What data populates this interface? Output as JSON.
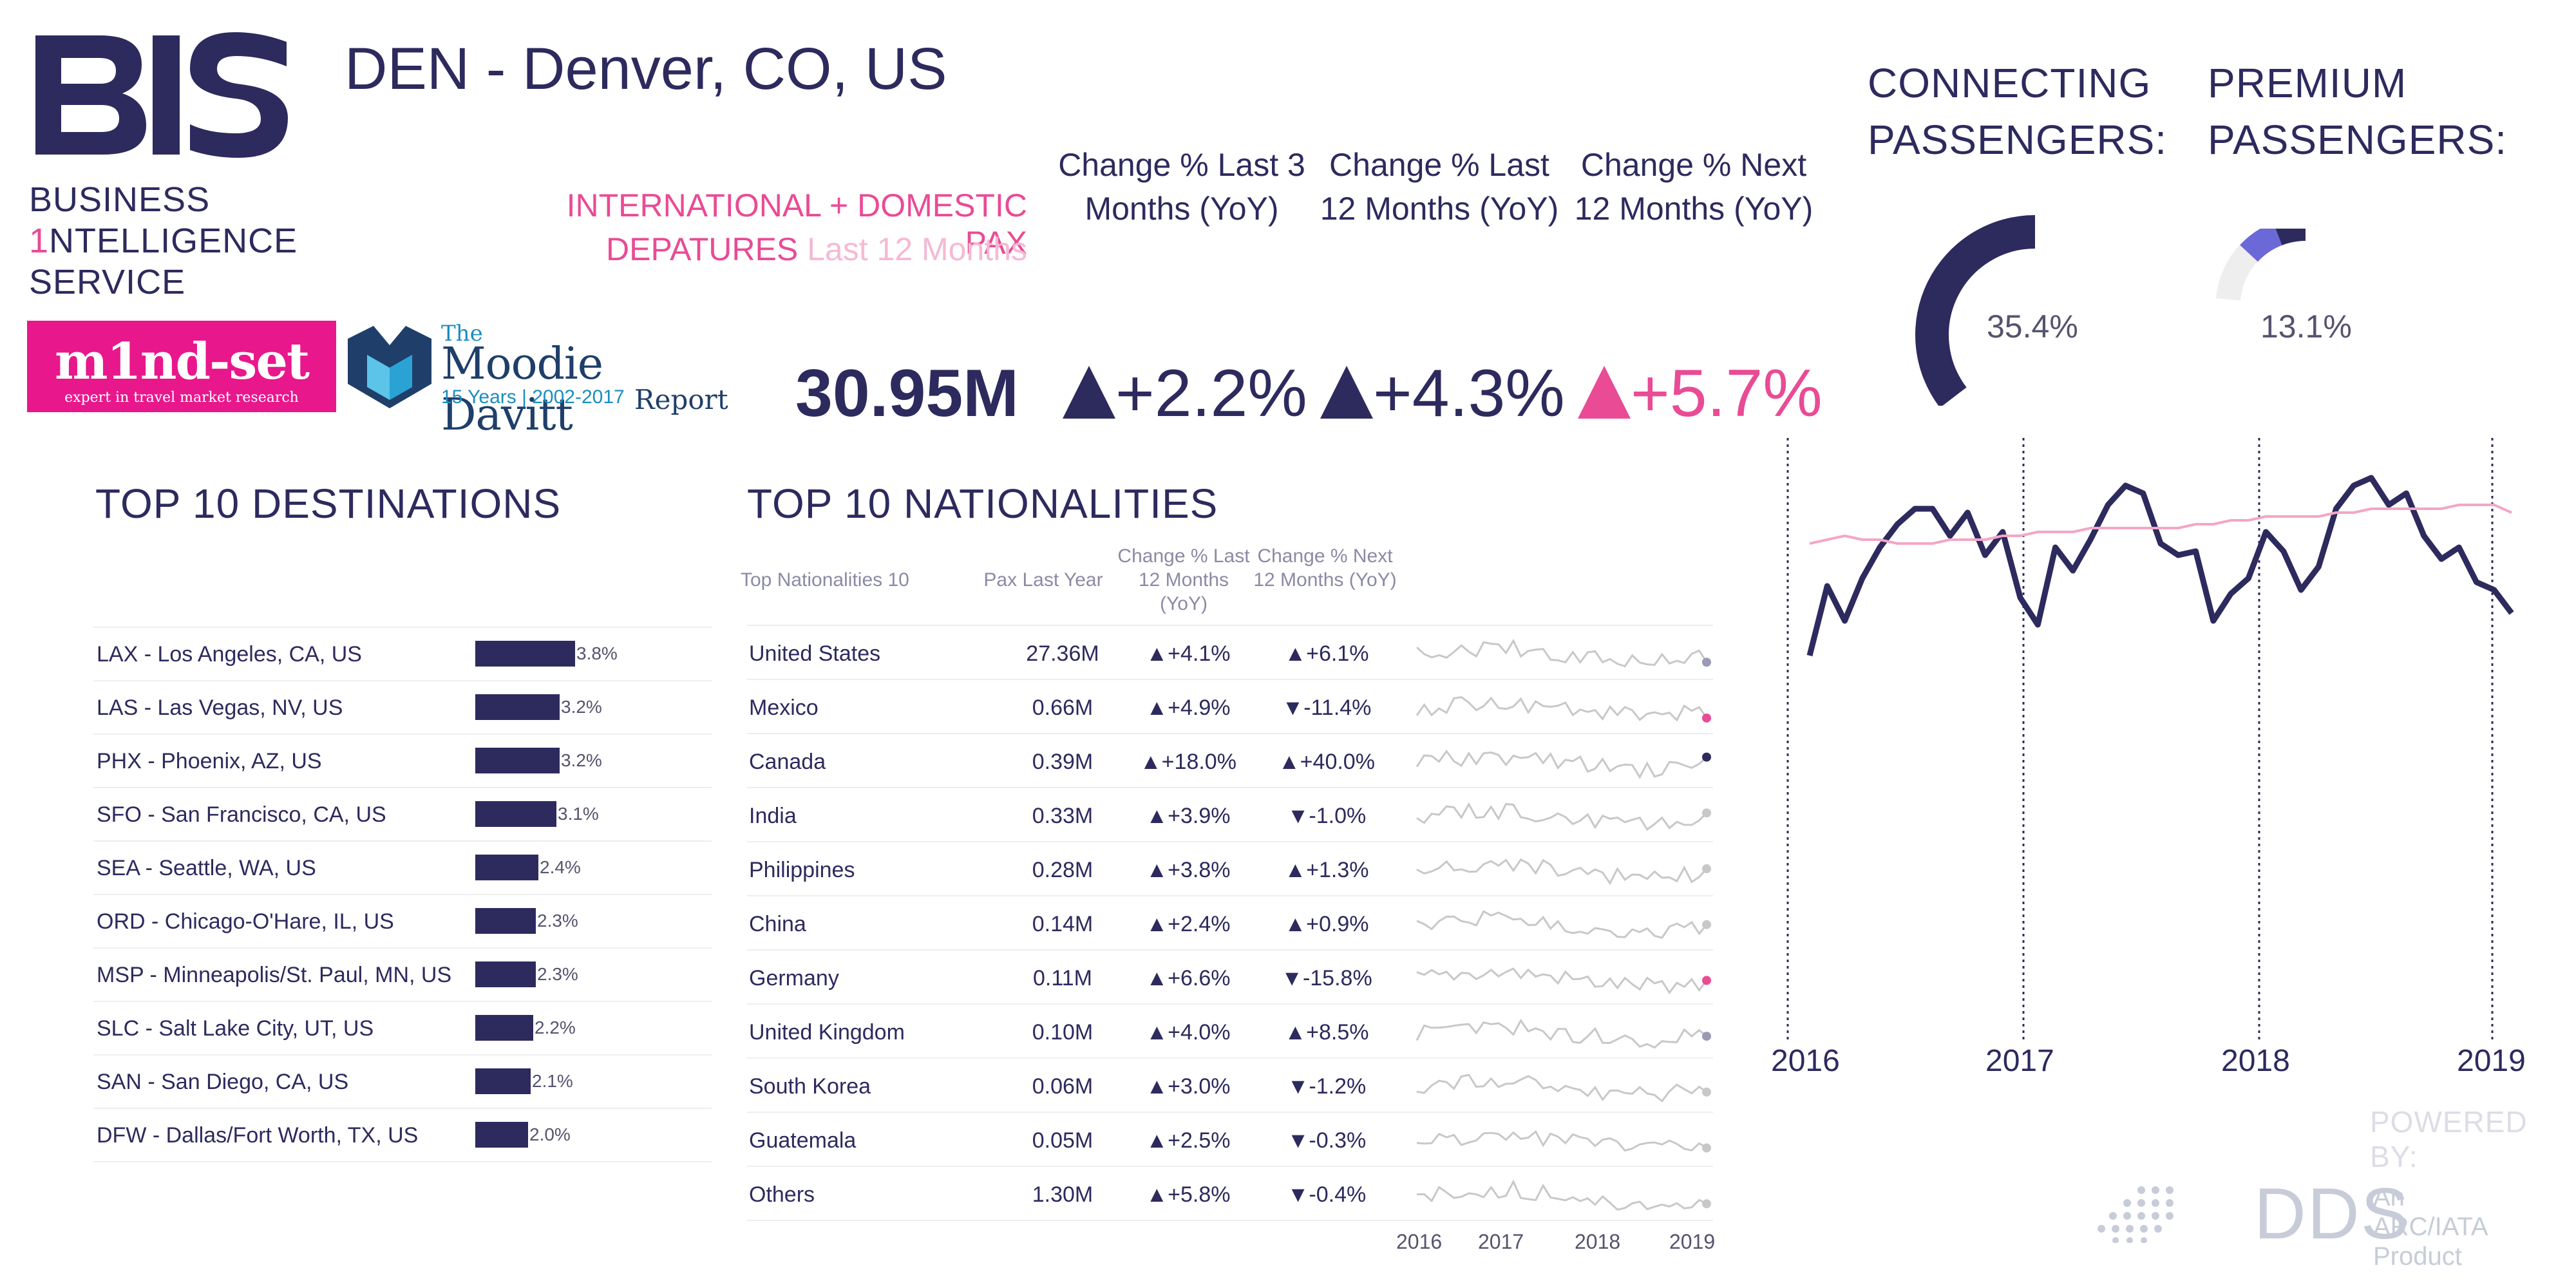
{
  "brand": {
    "line1": "BUSINESS",
    "line2_one": "1",
    "line2_rest": "NTELLIGENCE",
    "line3": "SERVICE",
    "mindset_name": "m1nd-set",
    "mindset_tag": "expert in travel market research",
    "moodie_the": "The",
    "moodie_name": "Moodie Davitt",
    "moodie_years": "15 Years | 2002-2017",
    "moodie_report": "Report"
  },
  "header": {
    "title": "DEN - Denver, CO, US",
    "pax_line1": "INTERNATIONAL + DOMESTIC PAX",
    "pax_line2_bold": "DEPATURES",
    "pax_line2_light": " Last 12 Months"
  },
  "kpis": {
    "total": "30.95M",
    "change_heads": [
      "Change % Last 3 Months (YoY)",
      "Change % Last 12 Months (YoY)",
      "Change % Next 12 Months (YoY)"
    ],
    "changes": [
      "+2.2%",
      "+4.3%",
      "+5.7%"
    ],
    "change_colors": [
      "#2d2a5e",
      "#2d2a5e",
      "#e94b95"
    ]
  },
  "connecting": {
    "title_1": "CONNECTING",
    "title_2": "PASSENGERS:",
    "value": "35.4%",
    "fraction": 0.354
  },
  "premium": {
    "title_1": "PREMIUM",
    "title_2": "PASSENGERS:",
    "value": "13.1%",
    "fraction": 0.131
  },
  "destinations": {
    "title": "TOP 10 DESTINATIONS",
    "rows": [
      {
        "name": "LAX - Los Angeles, CA, US",
        "pct": 3.8,
        "label": "3.8%"
      },
      {
        "name": "LAS - Las Vegas, NV, US",
        "pct": 3.2,
        "label": "3.2%"
      },
      {
        "name": "PHX - Phoenix, AZ, US",
        "pct": 3.2,
        "label": "3.2%"
      },
      {
        "name": "SFO - San Francisco, CA, US",
        "pct": 3.1,
        "label": "3.1%"
      },
      {
        "name": "SEA - Seattle, WA, US",
        "pct": 2.4,
        "label": "2.4%"
      },
      {
        "name": "ORD - Chicago-O'Hare, IL, US",
        "pct": 2.3,
        "label": "2.3%"
      },
      {
        "name": "MSP - Minneapolis/St. Paul, MN, US",
        "pct": 2.3,
        "label": "2.3%"
      },
      {
        "name": "SLC - Salt Lake City, UT, US",
        "pct": 2.2,
        "label": "2.2%"
      },
      {
        "name": "SAN - San Diego, CA, US",
        "pct": 2.1,
        "label": "2.1%"
      },
      {
        "name": "DFW - Dallas/Fort Worth, TX, US",
        "pct": 2.0,
        "label": "2.0%"
      }
    ]
  },
  "nationalities": {
    "title": "TOP 10 NATIONALITIES",
    "headers": [
      "Top Nationalities 10",
      "Pax Last Year",
      "Change % Last 12 Months (YoY)",
      "Change % Next 12 Months (YoY)"
    ],
    "rows": [
      {
        "name": "United States",
        "pax": "27.36M",
        "last": "▲+4.1%",
        "next": "▲+6.1%",
        "dot": "#9a9ab5"
      },
      {
        "name": "Mexico",
        "pax": "0.66M",
        "last": "▲+4.9%",
        "next": "▼-11.4%",
        "dot": "#e94b95"
      },
      {
        "name": "Canada",
        "pax": "0.39M",
        "last": "▲+18.0%",
        "next": "▲+40.0%",
        "dot": "#2d2a5e"
      },
      {
        "name": "India",
        "pax": "0.33M",
        "last": "▲+3.9%",
        "next": "▼-1.0%",
        "dot": "#c8c8c8"
      },
      {
        "name": "Philippines",
        "pax": "0.28M",
        "last": "▲+3.8%",
        "next": "▲+1.3%",
        "dot": "#c8c8c8"
      },
      {
        "name": "China",
        "pax": "0.14M",
        "last": "▲+2.4%",
        "next": "▲+0.9%",
        "dot": "#c8c8c8"
      },
      {
        "name": "Germany",
        "pax": "0.11M",
        "last": "▲+6.6%",
        "next": "▼-15.8%",
        "dot": "#e94b95"
      },
      {
        "name": "United Kingdom",
        "pax": "0.10M",
        "last": "▲+4.0%",
        "next": "▲+8.5%",
        "dot": "#9a9ab5"
      },
      {
        "name": "South Korea",
        "pax": "0.06M",
        "last": "▲+3.0%",
        "next": "▼-1.2%",
        "dot": "#c8c8c8"
      },
      {
        "name": "Guatemala",
        "pax": "0.05M",
        "last": "▲+2.5%",
        "next": "▼-0.3%",
        "dot": "#c8c8c8"
      },
      {
        "name": "Others",
        "pax": "1.30M",
        "last": "▲+5.8%",
        "next": "▼-0.4%",
        "dot": "#c8c8c8"
      }
    ],
    "spark_years": [
      "2016",
      "2017",
      "2018",
      "2019"
    ]
  },
  "chart_data": {
    "type": "line",
    "x_labels": [
      "2016",
      "2017",
      "2018",
      "2019"
    ],
    "series": [
      {
        "color": "#2d2a5e",
        "values": [
          0.86,
          0.68,
          0.77,
          0.66,
          0.58,
          0.52,
          0.48,
          0.48,
          0.55,
          0.49,
          0.6,
          0.54,
          0.71,
          0.78,
          0.58,
          0.64,
          0.56,
          0.47,
          0.42,
          0.44,
          0.57,
          0.6,
          0.59,
          0.77,
          0.7,
          0.66,
          0.54,
          0.59,
          0.69,
          0.63,
          0.48,
          0.42,
          0.4,
          0.47,
          0.44,
          0.55,
          0.61,
          0.58,
          0.67,
          0.69,
          0.75
        ]
      },
      {
        "color": "#f4a6c6",
        "values": [
          0.57,
          0.56,
          0.55,
          0.56,
          0.56,
          0.57,
          0.57,
          0.57,
          0.56,
          0.56,
          0.56,
          0.55,
          0.55,
          0.54,
          0.54,
          0.54,
          0.53,
          0.53,
          0.53,
          0.53,
          0.53,
          0.53,
          0.52,
          0.52,
          0.51,
          0.51,
          0.5,
          0.5,
          0.5,
          0.5,
          0.49,
          0.49,
          0.48,
          0.48,
          0.48,
          0.48,
          0.48,
          0.47,
          0.47,
          0.47,
          0.49
        ]
      }
    ]
  },
  "footer": {
    "powered": "POWERED BY:",
    "dds": "DDS",
    "dds_sub_1": "An ARC/IATA",
    "dds_sub_2": "Product"
  }
}
